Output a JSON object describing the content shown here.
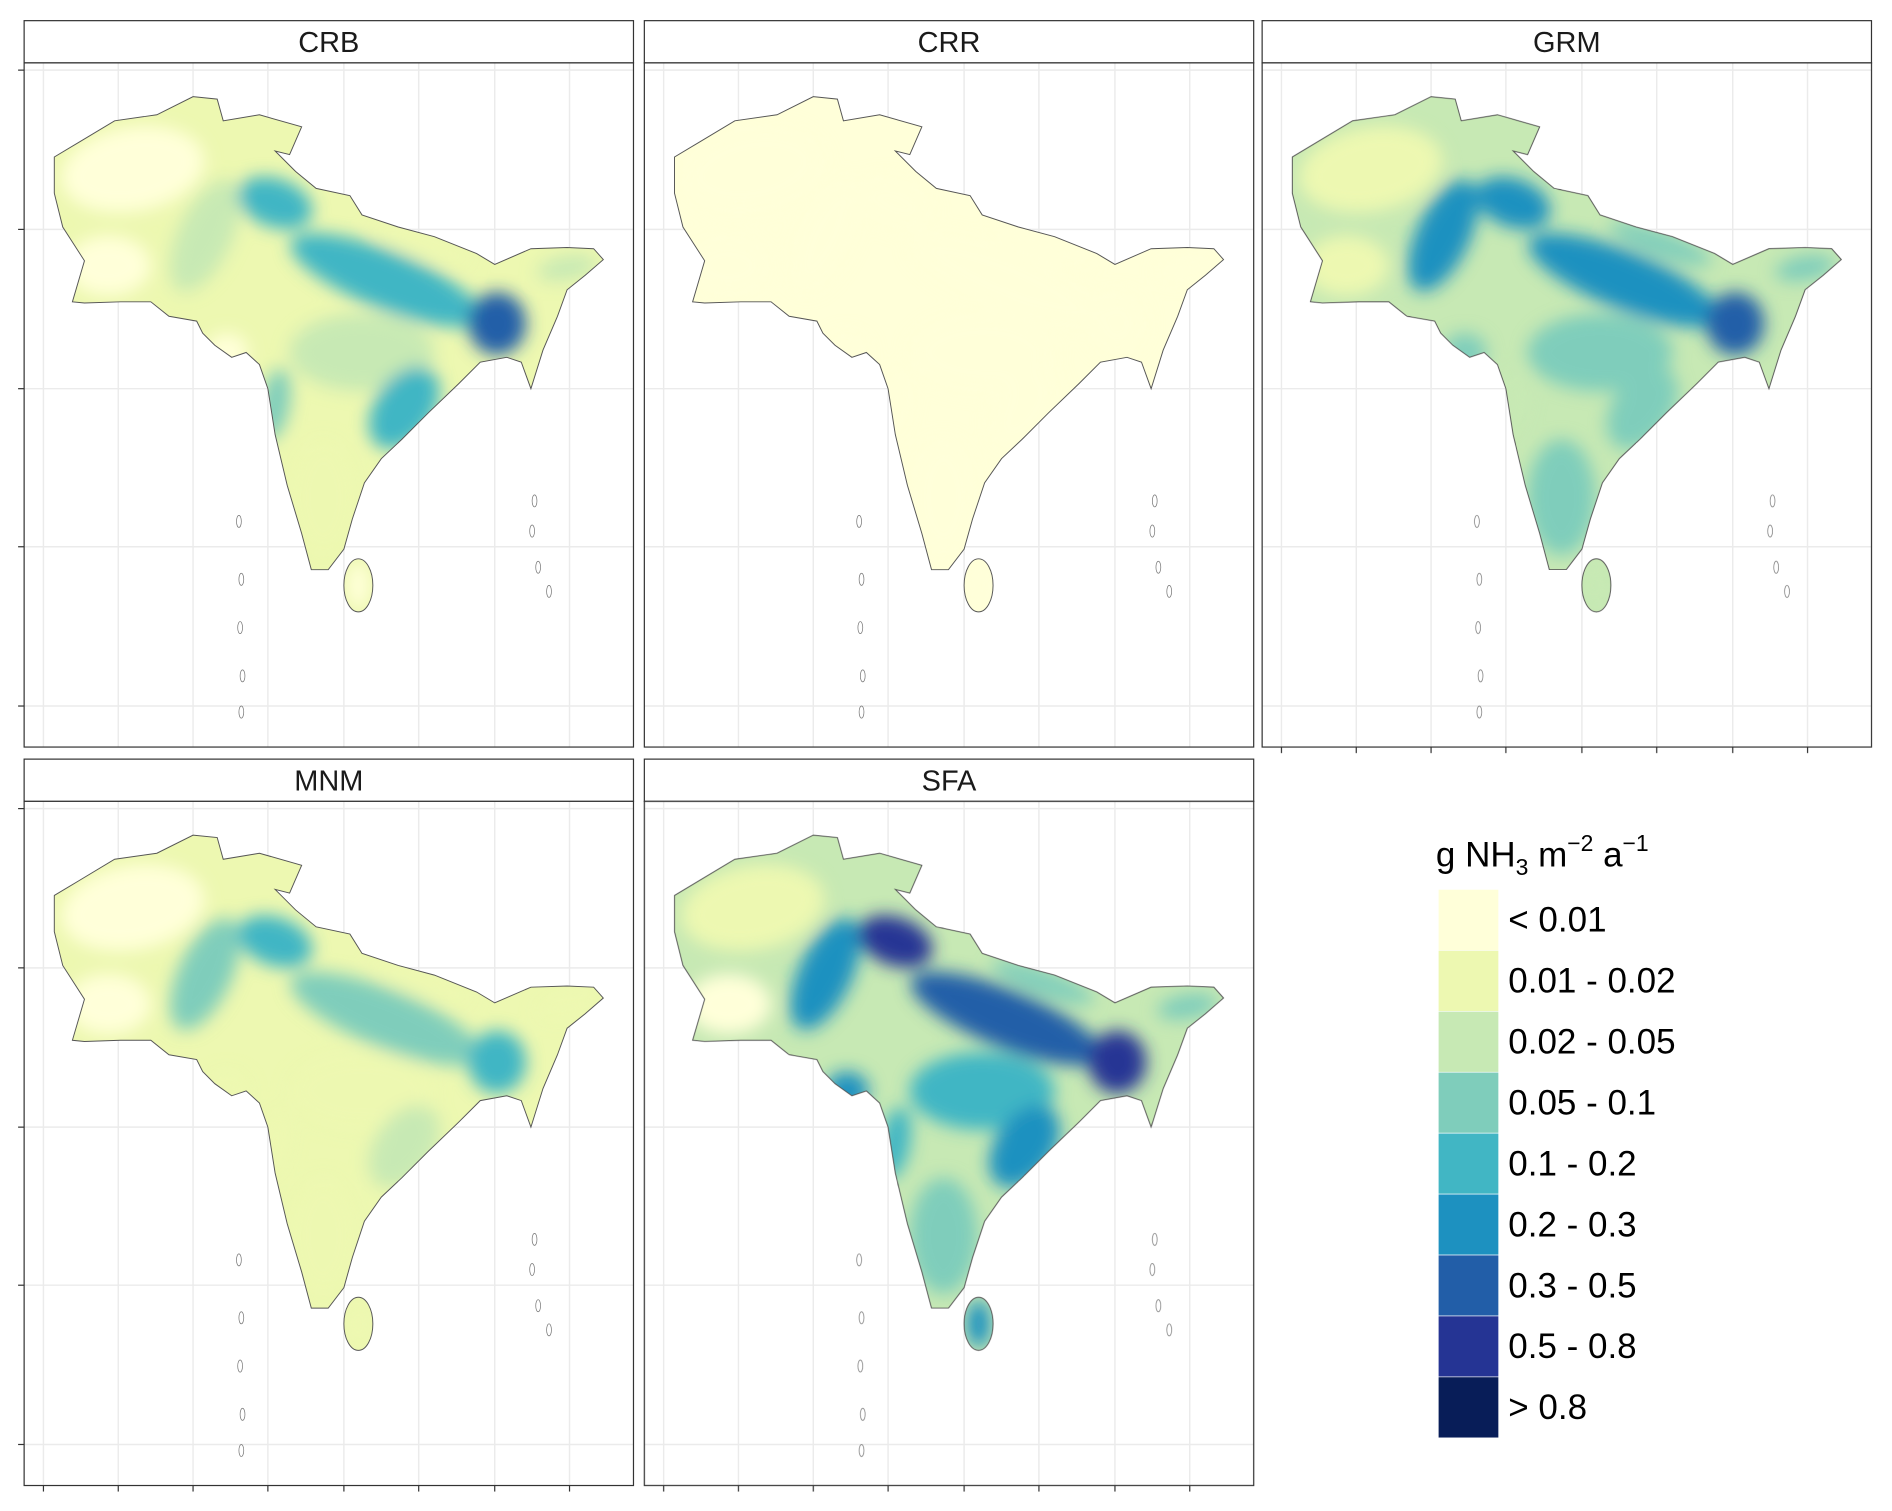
{
  "chart_data": {
    "type": "heatmap",
    "title": "",
    "xlabel": "",
    "ylabel": "",
    "grid": true,
    "legend_placement": "bottom-right",
    "legend": {
      "title": {
        "g": "g NH",
        "sub": "3",
        "m": " m",
        "sup1": "−2",
        "a": " a",
        "sup2": "−1"
      },
      "bins": [
        {
          "label": "< 0.01",
          "color": "#ffffd9"
        },
        {
          "label": "0.01 - 0.02",
          "color": "#edf8b1"
        },
        {
          "label": "0.02 - 0.05",
          "color": "#c7e9b4"
        },
        {
          "label": "0.05 - 0.1",
          "color": "#7fcdbb"
        },
        {
          "label": "0.1 - 0.2",
          "color": "#41b6c4"
        },
        {
          "label": "0.2 - 0.3",
          "color": "#1d91c0"
        },
        {
          "label": "0.3 - 0.5",
          "color": "#225ea8"
        },
        {
          "label": "0.5 - 0.8",
          "color": "#253494"
        },
        {
          "label": "> 0.8",
          "color": "#081d58"
        }
      ]
    },
    "panels": [
      {
        "label": "CRB",
        "base": 1,
        "regions": {
          "afghanistan": 0,
          "baluchistan": 0,
          "indus": 2,
          "punjab": 4,
          "nepal": 1,
          "igp": 4,
          "bangladesh": 6,
          "northeast": 2,
          "central": 2,
          "gujarat": 0,
          "west_coast": 3,
          "east_coast": 4,
          "south": 1,
          "sri_lanka": 0
        }
      },
      {
        "label": "CRR",
        "base": 0,
        "regions": {
          "afghanistan": 0,
          "baluchistan": 0,
          "indus": 0,
          "punjab": 0,
          "nepal": 0,
          "igp": 0,
          "bangladesh": 0,
          "northeast": 0,
          "central": 0,
          "gujarat": 0,
          "west_coast": 0,
          "east_coast": 0,
          "south": 0,
          "sri_lanka": 0
        }
      },
      {
        "label": "GRM",
        "base": 2,
        "regions": {
          "afghanistan": 1,
          "baluchistan": 1,
          "indus": 5,
          "punjab": 5,
          "nepal": 3,
          "igp": 5,
          "bangladesh": 6,
          "northeast": 3,
          "central": 3,
          "gujarat": 3,
          "west_coast": 2,
          "east_coast": 3,
          "south": 3,
          "sri_lanka": 2
        }
      },
      {
        "label": "MNM",
        "base": 1,
        "regions": {
          "afghanistan": 0,
          "baluchistan": 0,
          "indus": 3,
          "punjab": 4,
          "nepal": 1,
          "igp": 3,
          "bangladesh": 4,
          "northeast": 1,
          "central": 1,
          "gujarat": 1,
          "west_coast": 1,
          "east_coast": 2,
          "south": 1,
          "sri_lanka": 1
        }
      },
      {
        "label": "SFA",
        "base": 2,
        "regions": {
          "afghanistan": 1,
          "baluchistan": 0,
          "indus": 5,
          "punjab": 7,
          "nepal": 3,
          "igp": 6,
          "bangladesh": 7,
          "northeast": 3,
          "central": 4,
          "gujarat": 5,
          "west_coast": 4,
          "east_coast": 5,
          "south": 3,
          "sri_lanka": 5
        }
      }
    ]
  }
}
